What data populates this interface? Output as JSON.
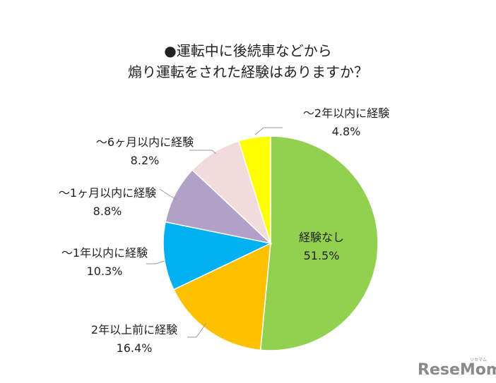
{
  "chart_data": {
    "type": "pie",
    "title": [
      "●運転中に後続車などから",
      "煽り運転をされた経験はありますか？"
    ],
    "start": "top",
    "direction": "clockwise",
    "slices": [
      {
        "label": "経験なし",
        "value": 51.5,
        "value_label": "51.5%",
        "color": "#92D050"
      },
      {
        "label": "2年以上前に経験",
        "value": 16.4,
        "value_label": "16.4%",
        "color": "#FFC000"
      },
      {
        "label": "〜1年以内に経験",
        "value": 10.3,
        "value_label": "10.3%",
        "color": "#00B0F0"
      },
      {
        "label": "〜1ヶ月以内に経験",
        "value": 8.8,
        "value_label": "8.8%",
        "color": "#B1A0C7"
      },
      {
        "label": "〜6ヶ月以内に経験",
        "value": 8.2,
        "value_label": "8.2%",
        "color": "#F2DCDB"
      },
      {
        "label": "〜2年以内に経験",
        "value": 4.8,
        "value_label": "4.8%",
        "color": "#FFFF00"
      }
    ]
  },
  "logo": {
    "text": "ReseMom",
    "subtext": "リセマム"
  }
}
